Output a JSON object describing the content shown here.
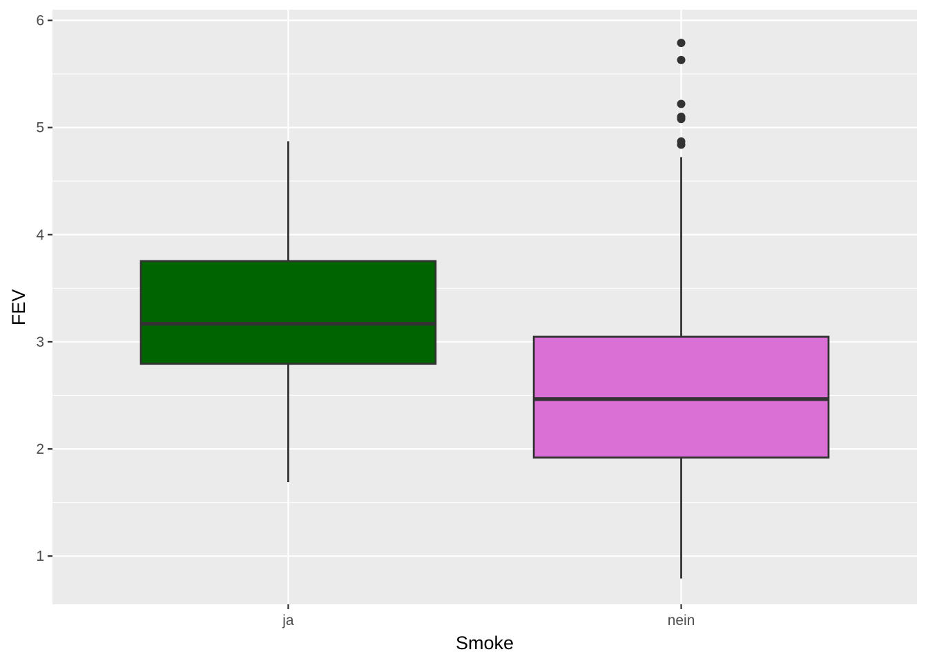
{
  "chart_data": {
    "type": "boxplot",
    "xlabel": "Smoke",
    "ylabel": "FEV",
    "ylim": [
      0.55,
      6.1
    ],
    "y_ticks": [
      1,
      2,
      3,
      4,
      5,
      6
    ],
    "y_minor_ticks": [
      1.5,
      2.5,
      3.5,
      4.5,
      5.5
    ],
    "grid": true,
    "categories": [
      "ja",
      "nein"
    ],
    "boxes": [
      {
        "category": "ja",
        "fill": "#006400",
        "whisker_low": 1.69,
        "q1": 2.795,
        "median": 3.169,
        "q3": 3.753,
        "whisker_high": 4.872,
        "outliers": []
      },
      {
        "category": "nein",
        "fill": "#da70d6",
        "whisker_low": 0.791,
        "q1": 1.92,
        "median": 2.465,
        "q3": 3.048,
        "whisker_high": 4.724,
        "outliers": [
          4.84,
          4.87,
          5.08,
          5.1,
          5.22,
          5.63,
          5.79
        ]
      }
    ]
  }
}
